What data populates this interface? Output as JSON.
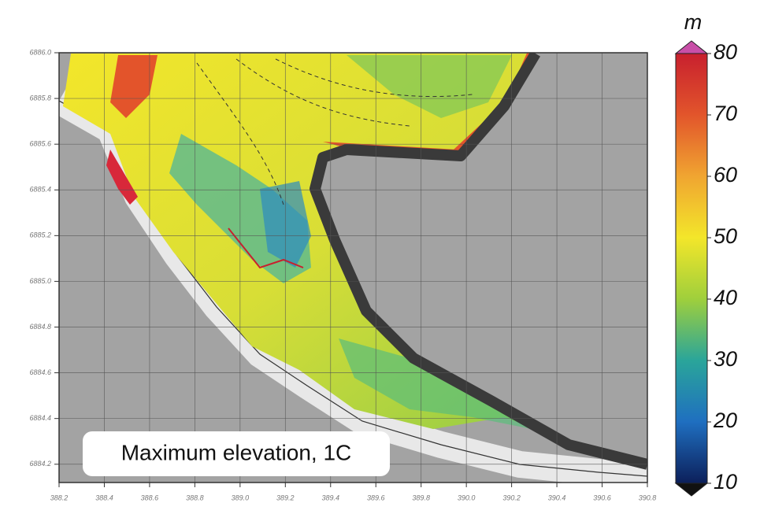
{
  "chart_data": {
    "type": "map",
    "annotation": "Maximum elevation, 1C",
    "xlim": [
      388.2,
      390.8
    ],
    "xticks": [
      388.2,
      388.4,
      388.6,
      388.8,
      {
        "value": 389.0,
        "label": "389.0"
      },
      389.2,
      389.4,
      389.6,
      389.8,
      {
        "value": 390.0,
        "label": "390.0"
      },
      390.2,
      390.4,
      390.6,
      390.8
    ],
    "ylim": [
      6884.12,
      6886.0
    ],
    "yticks": [
      {
        "value": 6886.0,
        "label": "6886.0"
      },
      6885.8,
      6885.6,
      6885.4,
      6885.2,
      {
        "value": 6885.0,
        "label": "6885.0"
      },
      6884.8,
      6884.6,
      6884.4,
      6884.2
    ],
    "grid": true,
    "colorbar": {
      "label": "m",
      "lim": [
        10,
        80
      ],
      "ticks": [
        10,
        20,
        30,
        40,
        50,
        60,
        70,
        80
      ],
      "colors": [
        "#0c1f5a",
        "#1f6fc0",
        "#2aa59a",
        "#9fcf3c",
        "#f3e62a",
        "#f0a531",
        "#e2552b",
        "#c8202e"
      ]
    }
  }
}
